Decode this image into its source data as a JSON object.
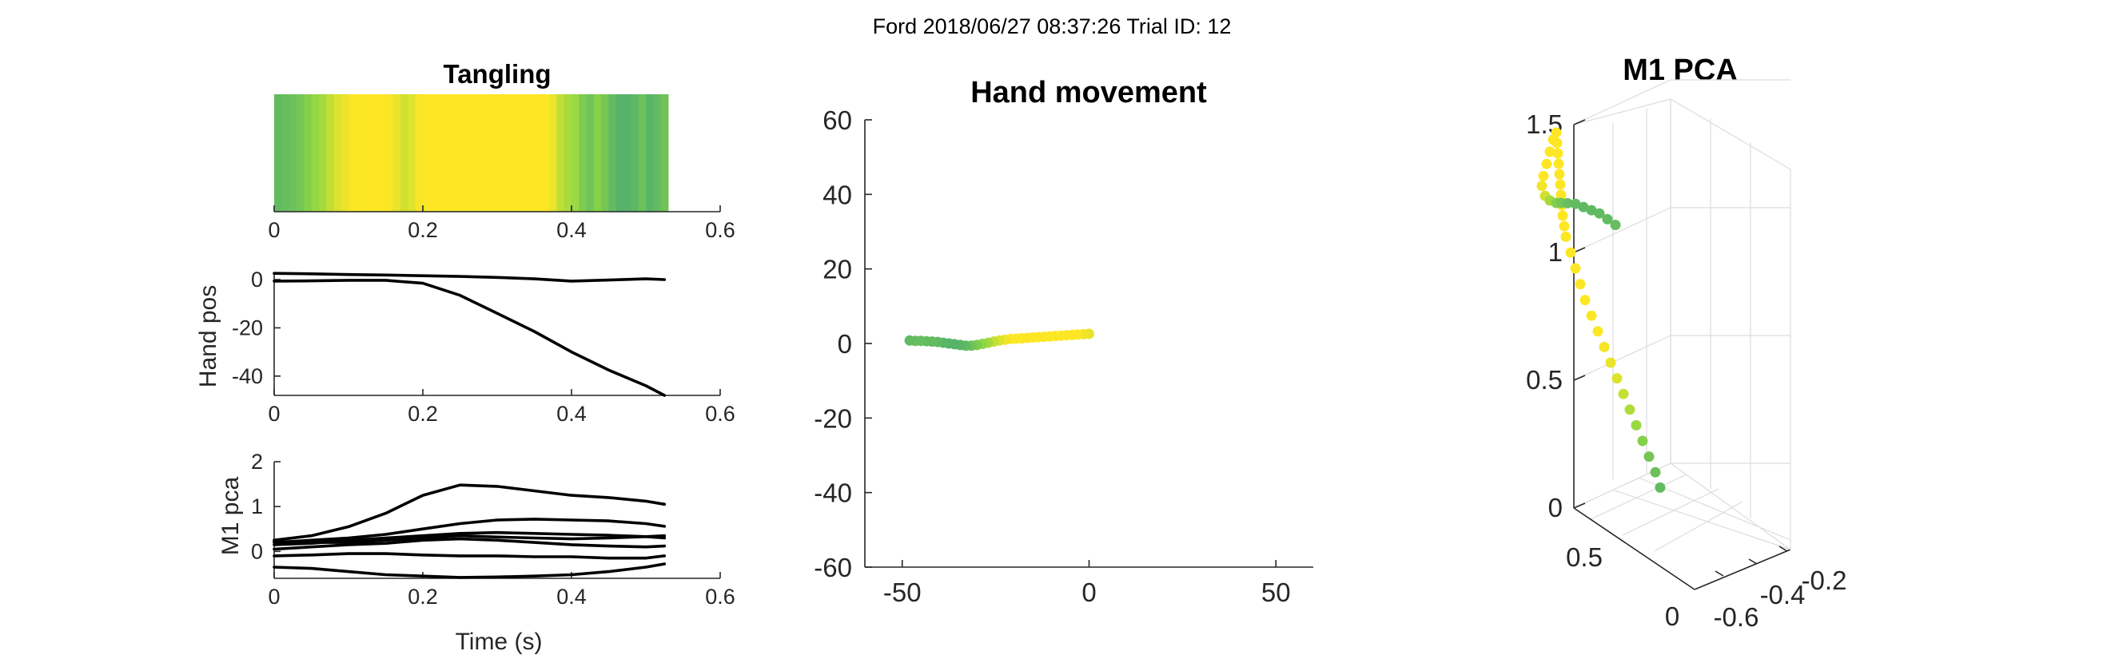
{
  "figure": {
    "suptitle": "Ford 2018/06/27 08:37:26 Trial ID: 12"
  },
  "colors": {
    "trace": "#000000",
    "axis": "#262626",
    "colormap_low": "#21918c",
    "colormap_mid": "#8fd744",
    "colormap_high": "#fde725"
  },
  "chart_data": [
    {
      "id": "tangling",
      "type": "heatmap",
      "title": "Tangling",
      "xlabel": "",
      "ylabel": "",
      "xlim": [
        0,
        0.6
      ],
      "xticks": [
        0,
        0.2,
        0.4,
        0.6
      ],
      "xticklabels": [
        "0",
        "0.2",
        "0.4",
        "0.6"
      ],
      "grid": false,
      "dt": 0.01,
      "values": [
        0.3,
        0.32,
        0.34,
        0.38,
        0.45,
        0.52,
        0.6,
        0.72,
        0.85,
        0.92,
        0.98,
        0.99,
        1.0,
        1.0,
        1.0,
        0.98,
        0.9,
        0.8,
        0.86,
        0.97,
        1.0,
        1.0,
        1.0,
        1.0,
        1.0,
        1.0,
        1.0,
        1.0,
        1.0,
        1.0,
        1.0,
        1.0,
        1.0,
        1.0,
        1.0,
        1.0,
        1.0,
        0.92,
        0.72,
        0.62,
        0.55,
        0.42,
        0.36,
        0.46,
        0.38,
        0.3,
        0.24,
        0.24,
        0.28,
        0.34,
        0.26,
        0.3,
        0.36
      ]
    },
    {
      "id": "hand-pos",
      "type": "line",
      "title": "",
      "xlabel": "",
      "ylabel": "Hand pos",
      "xlim": [
        0,
        0.6
      ],
      "ylim": [
        -48,
        2
      ],
      "xticks": [
        0,
        0.2,
        0.4,
        0.6
      ],
      "xticklabels": [
        "0",
        "0.2",
        "0.4",
        "0.6"
      ],
      "yticks": [
        0,
        -20,
        -40
      ],
      "yticklabels": [
        "0",
        "-20",
        "-40"
      ],
      "grid": false,
      "x": [
        0,
        0.05,
        0.1,
        0.15,
        0.2,
        0.25,
        0.3,
        0.35,
        0.4,
        0.45,
        0.5,
        0.525
      ],
      "series": [
        {
          "values": [
            2.6,
            2.4,
            2.1,
            1.9,
            1.6,
            1.3,
            0.9,
            0.3,
            -0.6,
            -0.2,
            0.3,
            0.0
          ]
        },
        {
          "values": [
            -0.6,
            -0.5,
            -0.3,
            -0.3,
            -1.5,
            -6.5,
            -14,
            -21.5,
            -30,
            -37.5,
            -44,
            -48
          ]
        }
      ]
    },
    {
      "id": "m1-pca-traces",
      "type": "line",
      "title": "",
      "xlabel": "Time (s)",
      "ylabel": "M1 pca",
      "xlim": [
        0,
        0.6
      ],
      "ylim": [
        -0.6,
        2
      ],
      "xticks": [
        0,
        0.2,
        0.4,
        0.6
      ],
      "xticklabels": [
        "0",
        "0.2",
        "0.4",
        "0.6"
      ],
      "yticks": [
        0,
        1,
        2
      ],
      "yticklabels": [
        "0",
        "1",
        "2"
      ],
      "grid": false,
      "x": [
        0,
        0.05,
        0.1,
        0.15,
        0.2,
        0.25,
        0.3,
        0.35,
        0.4,
        0.45,
        0.5,
        0.525
      ],
      "series": [
        {
          "values": [
            0.25,
            0.35,
            0.55,
            0.85,
            1.25,
            1.48,
            1.45,
            1.35,
            1.25,
            1.2,
            1.12,
            1.05
          ]
        },
        {
          "values": [
            0.2,
            0.25,
            0.3,
            0.38,
            0.5,
            0.62,
            0.7,
            0.72,
            0.7,
            0.68,
            0.62,
            0.56
          ]
        },
        {
          "values": [
            0.15,
            0.18,
            0.25,
            0.3,
            0.35,
            0.4,
            0.42,
            0.4,
            0.38,
            0.36,
            0.33,
            0.3
          ]
        },
        {
          "values": [
            0.22,
            0.2,
            0.2,
            0.25,
            0.3,
            0.35,
            0.32,
            0.3,
            0.28,
            0.3,
            0.33,
            0.35
          ]
        },
        {
          "values": [
            0.05,
            0.1,
            0.15,
            0.18,
            0.25,
            0.28,
            0.25,
            0.2,
            0.15,
            0.12,
            0.1,
            0.12
          ]
        },
        {
          "values": [
            -0.1,
            -0.08,
            -0.05,
            -0.05,
            -0.08,
            -0.1,
            -0.1,
            -0.12,
            -0.12,
            -0.15,
            -0.15,
            -0.1
          ]
        },
        {
          "values": [
            -0.35,
            -0.38,
            -0.45,
            -0.52,
            -0.55,
            -0.58,
            -0.57,
            -0.55,
            -0.52,
            -0.45,
            -0.35,
            -0.28
          ]
        }
      ]
    },
    {
      "id": "hand-movement",
      "type": "scatter",
      "title": "Hand movement",
      "xlabel": "",
      "ylabel": "",
      "xlim": [
        -60,
        60
      ],
      "ylim": [
        -60,
        60
      ],
      "xticks": [
        -50,
        0,
        50
      ],
      "xticklabels": [
        "-50",
        "0",
        "50"
      ],
      "yticks": [
        60,
        40,
        20,
        0,
        -20,
        -40,
        -60
      ],
      "yticklabels": [
        "60",
        "40",
        "20",
        "0",
        "-20",
        "-40",
        "-60"
      ],
      "grid": false,
      "x": [
        0,
        -1.5,
        -3,
        -4.5,
        -6,
        -7.5,
        -9,
        -10.5,
        -12,
        -13.5,
        -15,
        -16.5,
        -18,
        -19.5,
        -21,
        -22.5,
        -24,
        -25.5,
        -27,
        -28.5,
        -30,
        -31.5,
        -33,
        -34.5,
        -36,
        -37.5,
        -39,
        -40.5,
        -42,
        -43.5,
        -45,
        -46.5,
        -48
      ],
      "y": [
        2.6,
        2.5,
        2.4,
        2.3,
        2.2,
        2.1,
        2.0,
        1.9,
        1.8,
        1.7,
        1.6,
        1.5,
        1.4,
        1.3,
        1.2,
        1.0,
        0.8,
        0.5,
        0.2,
        -0.1,
        -0.4,
        -0.6,
        -0.6,
        -0.4,
        -0.2,
        0.0,
        0.2,
        0.4,
        0.5,
        0.6,
        0.7,
        0.7,
        0.8
      ],
      "color_values": [
        0.9,
        0.95,
        1.0,
        1.0,
        1.0,
        1.0,
        1.0,
        1.0,
        1.0,
        1.0,
        1.0,
        1.0,
        1.0,
        1.0,
        1.0,
        0.95,
        0.85,
        0.75,
        0.6,
        0.5,
        0.42,
        0.36,
        0.3,
        0.26,
        0.24,
        0.24,
        0.26,
        0.28,
        0.3,
        0.3,
        0.32,
        0.32,
        0.3
      ]
    },
    {
      "id": "m1-pca-3d",
      "type": "scatter",
      "title": "M1 PCA",
      "xlabel": "",
      "ylabel": "",
      "zlim": [
        0,
        1.5
      ],
      "xticklabels": [
        "-0.6",
        "-0.4",
        "-0.2"
      ],
      "yticklabels": [
        "0",
        "0.5"
      ],
      "zticks": [
        0,
        0.5,
        1,
        1.5
      ],
      "zticklabels": [
        "0",
        "0.5",
        "1",
        "1.5"
      ],
      "grid": true,
      "x": [
        -0.14,
        -0.15,
        -0.17,
        -0.19,
        -0.21,
        -0.23,
        -0.25,
        -0.27,
        -0.29,
        -0.31,
        -0.33,
        -0.35,
        -0.37,
        -0.39,
        -0.41,
        -0.43,
        -0.45,
        -0.46,
        -0.47,
        -0.475,
        -0.48,
        -0.485,
        -0.49,
        -0.495,
        -0.5,
        -0.505,
        -0.51,
        -0.53,
        -0.55,
        -0.57,
        -0.59,
        -0.6,
        -0.6,
        -0.6,
        -0.59,
        -0.58,
        -0.56,
        -0.53,
        -0.5,
        -0.47,
        -0.44,
        -0.41,
        -0.38
      ],
      "y": [
        0.32,
        0.34,
        0.36,
        0.38,
        0.4,
        0.42,
        0.44,
        0.46,
        0.48,
        0.5,
        0.52,
        0.54,
        0.56,
        0.57,
        0.58,
        0.59,
        0.6,
        0.6,
        0.6,
        0.6,
        0.6,
        0.6,
        0.6,
        0.6,
        0.6,
        0.6,
        0.6,
        0.6,
        0.6,
        0.6,
        0.6,
        0.6,
        0.58,
        0.55,
        0.52,
        0.5,
        0.48,
        0.46,
        0.44,
        0.42,
        0.4,
        0.38,
        0.36
      ],
      "z": [
        0.12,
        0.18,
        0.24,
        0.3,
        0.36,
        0.42,
        0.48,
        0.54,
        0.6,
        0.66,
        0.72,
        0.78,
        0.84,
        0.9,
        0.96,
        1.02,
        1.08,
        1.12,
        1.16,
        1.2,
        1.24,
        1.28,
        1.32,
        1.36,
        1.4,
        1.44,
        1.48,
        1.45,
        1.4,
        1.35,
        1.3,
        1.26,
        1.22,
        1.2,
        1.19,
        1.19,
        1.19,
        1.19,
        1.18,
        1.17,
        1.16,
        1.14,
        1.12
      ],
      "color_values": [
        0.3,
        0.34,
        0.38,
        0.45,
        0.55,
        0.65,
        0.75,
        0.85,
        0.92,
        0.97,
        1.0,
        1.0,
        1.0,
        1.0,
        1.0,
        1.0,
        1.0,
        1.0,
        1.0,
        1.0,
        1.0,
        1.0,
        1.0,
        1.0,
        1.0,
        1.0,
        1.0,
        1.0,
        1.0,
        1.0,
        1.0,
        0.95,
        0.8,
        0.6,
        0.45,
        0.38,
        0.32,
        0.3,
        0.28,
        0.28,
        0.3,
        0.3,
        0.32
      ]
    }
  ]
}
